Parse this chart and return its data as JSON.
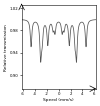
{
  "title": "",
  "ylabel": "Relative transmission",
  "xlabel": "Speed (mm/s)",
  "xlim": [
    -6.2,
    6.2
  ],
  "ylim": [
    0.875,
    1.025
  ],
  "yticks": [
    0.9,
    0.94,
    0.98,
    1.02
  ],
  "xtick_vals": [
    -6,
    -4,
    -2,
    0,
    2,
    4,
    6
  ],
  "xtick_labels": [
    "-6",
    "-4",
    "-2",
    "0",
    "2",
    "4",
    "6"
  ],
  "bg_color": "#ffffff",
  "line_color": "#555555",
  "figsize": [
    1.0,
    1.06
  ],
  "dpi": 100
}
